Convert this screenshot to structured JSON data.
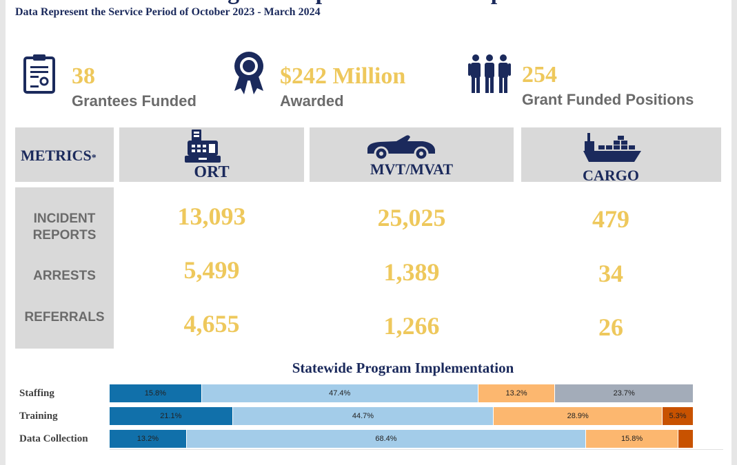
{
  "header": {
    "title_partial": "Program Implementation Snapshot",
    "subtitle": "Data Represent the Service Period of October 2023 - March 2024"
  },
  "stats": [
    {
      "icon": "certificate-icon",
      "value": "38",
      "label": "Grantees Funded"
    },
    {
      "icon": "award-ribbon-icon",
      "value": "$242 Million",
      "label": "Awarded"
    },
    {
      "icon": "people-group-icon",
      "value": "254",
      "label": "Grant Funded Positions"
    }
  ],
  "metrics": {
    "header": "METRICS",
    "asterisk": "*",
    "columns": [
      {
        "icon": "cash-register-icon",
        "label": "ORT"
      },
      {
        "icon": "convertible-car-icon",
        "label": "MVT/MVAT"
      },
      {
        "icon": "cargo-ship-icon",
        "label": "CARGO"
      }
    ],
    "rows": [
      {
        "label_line1": "INCIDENT",
        "label_line2": "REPORTS",
        "values": [
          "13,093",
          "25,025",
          "479"
        ]
      },
      {
        "label_line1": "ARRESTS",
        "label_line2": "",
        "values": [
          "5,499",
          "1,389",
          "34"
        ]
      },
      {
        "label_line1": "REFERRALS",
        "label_line2": "",
        "values": [
          "4,655",
          "1,266",
          "26"
        ]
      }
    ]
  },
  "colors": {
    "navy": "#1b2a5c",
    "gold": "#eec85c",
    "gray_panel": "#d9d9d9",
    "seg_dark_blue": "#1170aa",
    "seg_light_blue": "#a3cce9",
    "seg_light_orange": "#fcb76f",
    "seg_gray": "#a3acb9",
    "seg_dark_orange": "#c85200"
  },
  "chart_data": {
    "type": "bar",
    "title": "Statewide Program Implementation",
    "orientation": "horizontal-stacked-100",
    "categories": [
      "Staffing",
      "Training",
      "Data Collection"
    ],
    "rows": [
      {
        "name": "Staffing",
        "segments": [
          {
            "value": 15.8,
            "label": "15.8%",
            "color": "#1170aa"
          },
          {
            "value": 47.4,
            "label": "47.4%",
            "color": "#a3cce9"
          },
          {
            "value": 13.2,
            "label": "13.2%",
            "color": "#fcb76f"
          },
          {
            "value": 23.7,
            "label": "23.7%",
            "color": "#a3acb9"
          }
        ]
      },
      {
        "name": "Training",
        "segments": [
          {
            "value": 21.1,
            "label": "21.1%",
            "color": "#1170aa"
          },
          {
            "value": 44.7,
            "label": "44.7%",
            "color": "#a3cce9"
          },
          {
            "value": 28.9,
            "label": "28.9%",
            "color": "#fcb76f"
          },
          {
            "value": 5.3,
            "label": "5.3%",
            "color": "#c85200"
          }
        ]
      },
      {
        "name": "Data Collection",
        "segments": [
          {
            "value": 13.2,
            "label": "13.2%",
            "color": "#1170aa"
          },
          {
            "value": 68.4,
            "label": "68.4%",
            "color": "#a3cce9"
          },
          {
            "value": 15.8,
            "label": "15.8%",
            "color": "#fcb76f"
          },
          {
            "value": 2.6,
            "label": "",
            "color": "#c85200"
          }
        ]
      }
    ],
    "xlim": [
      0,
      100
    ]
  }
}
